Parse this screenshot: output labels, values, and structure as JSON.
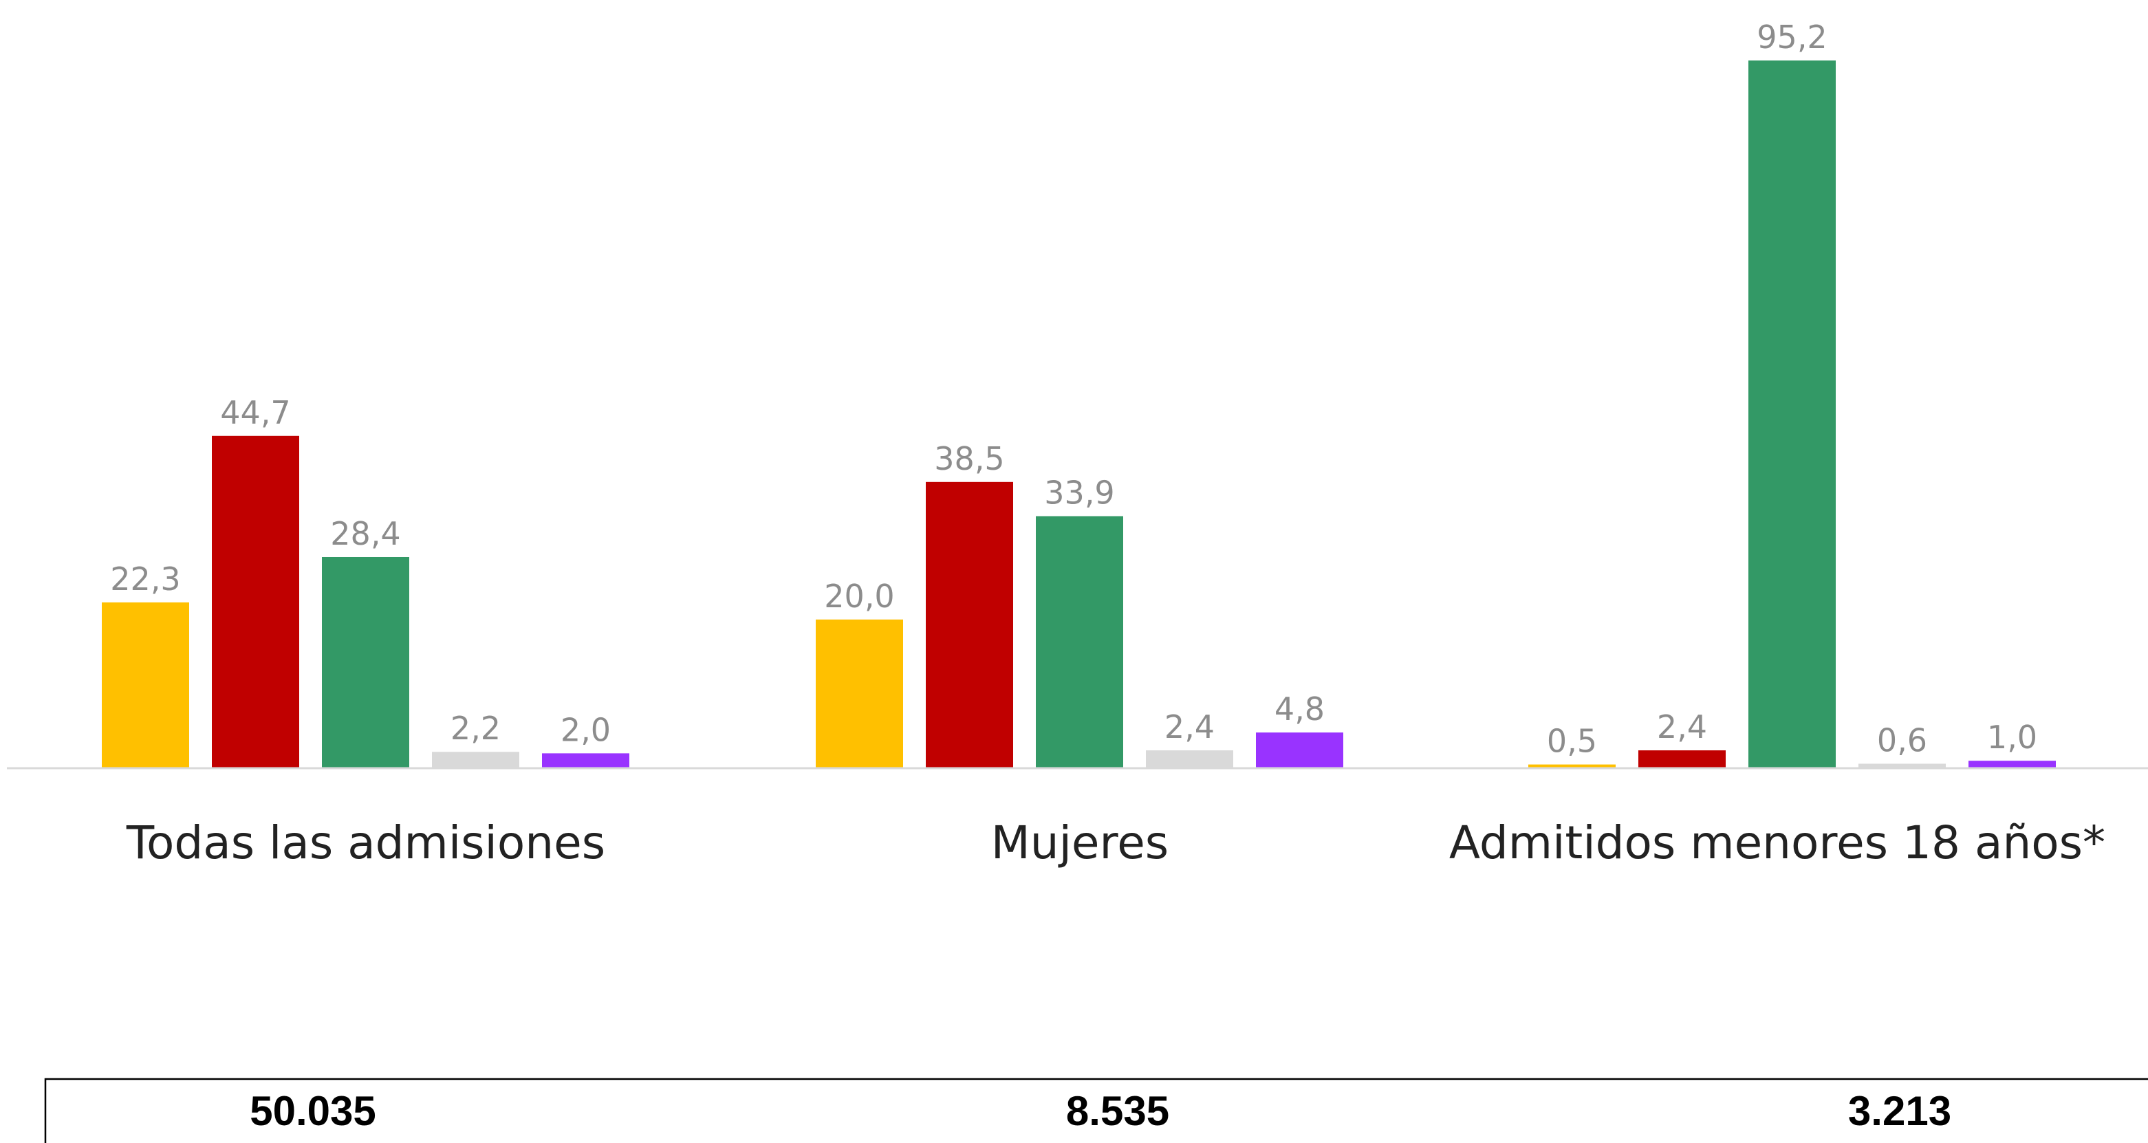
{
  "chart_data": {
    "type": "bar",
    "categories": [
      "Todas las admisiones",
      "Mujeres",
      "Admitidos menores 18 años*"
    ],
    "series": [
      {
        "values": [
          22.3,
          20.0,
          0.5
        ],
        "color": "#ffc000"
      },
      {
        "values": [
          44.7,
          38.5,
          2.4
        ],
        "color": "#c00000"
      },
      {
        "values": [
          28.4,
          33.9,
          95.2
        ],
        "color": "#339966"
      },
      {
        "values": [
          2.2,
          2.4,
          0.6
        ],
        "color": "#d9d9d9"
      },
      {
        "values": [
          2.0,
          4.8,
          1.0
        ],
        "color": "#9933ff"
      }
    ],
    "value_labels": [
      [
        "22,3",
        "20,0",
        "0,5"
      ],
      [
        "44,7",
        "38,5",
        "2,4"
      ],
      [
        "28,4",
        "33,9",
        "95,2"
      ],
      [
        "2,2",
        "2,4",
        "0,6"
      ],
      [
        "2,0",
        "4,8",
        "1,0"
      ]
    ],
    "totals": [
      "50.035",
      "8.535",
      "3.213"
    ],
    "ylim": [
      0,
      100
    ],
    "grid": false,
    "title": "",
    "xlabel": "",
    "ylabel": ""
  }
}
